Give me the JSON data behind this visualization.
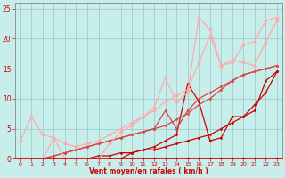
{
  "xlabel": "Vent moyen/en rafales ( km/h )",
  "xlim": [
    -0.5,
    23.5
  ],
  "ylim": [
    0,
    26
  ],
  "xticks": [
    0,
    1,
    2,
    3,
    4,
    5,
    6,
    7,
    8,
    9,
    10,
    11,
    12,
    13,
    14,
    15,
    16,
    17,
    18,
    19,
    20,
    21,
    22,
    23
  ],
  "yticks": [
    0,
    5,
    10,
    15,
    20,
    25
  ],
  "background_color": "#c8eeec",
  "grid_color": "#a0ccca",
  "lines": [
    {
      "x": [
        0,
        1,
        2,
        3,
        4,
        5,
        6,
        7,
        8,
        9,
        10,
        11,
        12,
        13,
        14,
        15,
        16,
        17,
        18,
        19,
        20,
        21,
        22,
        23
      ],
      "y": [
        0,
        0,
        0,
        0,
        0,
        0,
        0,
        0,
        0,
        0,
        0,
        0,
        0,
        0,
        0,
        0,
        0,
        0,
        0,
        0,
        0,
        0,
        0,
        0
      ],
      "color": "#cc0000",
      "lw": 0.8,
      "marker": "D",
      "ms": 1.5
    },
    {
      "x": [
        0,
        1,
        2,
        3,
        4,
        5,
        6,
        7,
        8,
        9,
        10,
        11,
        12,
        13,
        14,
        15,
        16,
        17,
        18,
        19,
        20,
        21,
        22,
        23
      ],
      "y": [
        0,
        0,
        0,
        0,
        0,
        0,
        0,
        0,
        0,
        0,
        0,
        0,
        0,
        0,
        0,
        0,
        0,
        0,
        0,
        0,
        0,
        0,
        0,
        0
      ],
      "color": "#cc0000",
      "lw": 0.8,
      "marker": "D",
      "ms": 1.5
    },
    {
      "x": [
        0,
        1,
        2,
        3,
        4,
        5,
        6,
        7,
        8,
        9,
        10,
        11,
        12,
        13,
        14,
        15,
        16,
        17,
        18,
        19,
        20,
        21,
        22,
        23
      ],
      "y": [
        0,
        0,
        0,
        0,
        0,
        0,
        0,
        0.5,
        0.5,
        1.0,
        1.0,
        1.5,
        1.5,
        2.0,
        2.5,
        3.0,
        3.5,
        4.0,
        5.0,
        6.0,
        7.0,
        9.0,
        11.0,
        14.5
      ],
      "color": "#cc0000",
      "lw": 0.9,
      "marker": "D",
      "ms": 1.5
    },
    {
      "x": [
        0,
        1,
        2,
        3,
        4,
        5,
        6,
        7,
        8,
        9,
        10,
        11,
        12,
        13,
        14,
        15,
        16,
        17,
        18,
        19,
        20,
        21,
        22,
        23
      ],
      "y": [
        0,
        0,
        0,
        0,
        0,
        0,
        0,
        0,
        0,
        0,
        1.0,
        1.5,
        2.0,
        3.0,
        4.0,
        12.5,
        9.5,
        3.0,
        3.5,
        7.0,
        7.0,
        8.0,
        13.0,
        14.5
      ],
      "color": "#cc0000",
      "lw": 0.9,
      "marker": "D",
      "ms": 1.5
    },
    {
      "x": [
        0,
        1,
        2,
        3,
        4,
        5,
        6,
        7,
        8,
        9,
        10,
        11,
        12,
        13,
        14,
        15,
        16,
        17,
        18,
        19,
        20,
        21,
        22,
        23
      ],
      "y": [
        0,
        0,
        0,
        0.5,
        1.0,
        1.5,
        2.0,
        2.5,
        3.0,
        3.5,
        4.0,
        4.5,
        5.0,
        5.5,
        6.5,
        7.5,
        9.0,
        10.0,
        11.5,
        13.0,
        14.0,
        14.5,
        15.0,
        15.5
      ],
      "color": "#dd4444",
      "lw": 0.9,
      "marker": "D",
      "ms": 1.5
    },
    {
      "x": [
        0,
        1,
        2,
        3,
        4,
        5,
        6,
        7,
        8,
        9,
        10,
        11,
        12,
        13,
        14,
        15,
        16,
        17,
        18,
        19,
        20,
        21,
        22,
        23
      ],
      "y": [
        0,
        0,
        0,
        0.5,
        1.0,
        1.5,
        2.0,
        2.5,
        3.0,
        3.5,
        4.0,
        4.5,
        5.0,
        8.0,
        5.0,
        8.0,
        10.0,
        11.0,
        12.0,
        13.0,
        14.0,
        14.5,
        15.0,
        15.5
      ],
      "color": "#dd4444",
      "lw": 0.9,
      "marker": "D",
      "ms": 1.5
    },
    {
      "x": [
        0,
        1,
        2,
        3,
        4,
        5,
        6,
        7,
        8,
        9,
        10,
        11,
        12,
        13,
        14,
        15,
        16,
        17,
        18,
        19,
        20,
        21,
        22,
        23
      ],
      "y": [
        3,
        7,
        4,
        3.5,
        2.5,
        2.0,
        2.5,
        3.0,
        4.0,
        5.0,
        6.0,
        7.0,
        8.0,
        9.5,
        10.5,
        11.5,
        16.0,
        20.5,
        15.5,
        16.0,
        19.0,
        19.5,
        23.0,
        23.5
      ],
      "color": "#ffaaaa",
      "lw": 0.9,
      "marker": "D",
      "ms": 2.0
    },
    {
      "x": [
        0,
        1,
        2,
        3,
        4,
        5,
        6,
        7,
        8,
        9,
        10,
        11,
        12,
        13,
        14,
        15,
        16,
        17,
        18,
        19,
        20,
        21,
        22,
        23
      ],
      "y": [
        0,
        0,
        0,
        3.5,
        0,
        0,
        0,
        0,
        2.5,
        4.5,
        5.5,
        7.0,
        8.5,
        13.5,
        9.5,
        11.0,
        23.5,
        21.5,
        15.5,
        16.5,
        16.0,
        15.5,
        19.5,
        23.0
      ],
      "color": "#ffaaaa",
      "lw": 0.9,
      "marker": "D",
      "ms": 2.0
    }
  ]
}
